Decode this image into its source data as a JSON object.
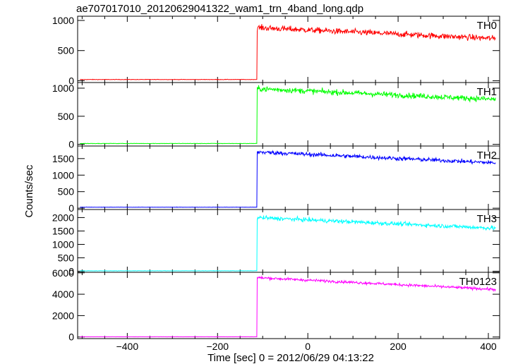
{
  "title": "ae707017010_20120629041322_wam1_trn_4band_long.qdp",
  "xlabel": "Time [sec] 0 = 2012/06/29 04:13:22",
  "ylabel": "Counts/sec",
  "chart_data": {
    "type": "line",
    "title": "ae707017010_20120629041322_wam1_trn_4band_long.qdp",
    "xlabel": "Time [sec] 0 = 2012/06/29 04:13:22",
    "ylabel": "Counts/sec",
    "xlim": [
      -510,
      425
    ],
    "x_ticks": [
      -400,
      -200,
      0,
      200,
      400
    ],
    "grid": false,
    "legend": "none",
    "onset_time": -112,
    "panels": [
      {
        "label": "TH0",
        "color": "#ff0000",
        "ylim": [
          -30,
          1070
        ],
        "y_ticks": [
          0,
          500,
          1000
        ],
        "pre_level": 20,
        "post_start_level": 880,
        "post_end_level": 700,
        "noise": 35
      },
      {
        "label": "TH1",
        "color": "#00ff00",
        "ylim": [
          -30,
          1100
        ],
        "y_ticks": [
          0,
          500,
          1000
        ],
        "pre_level": 15,
        "post_start_level": 990,
        "post_end_level": 800,
        "noise": 35
      },
      {
        "label": "TH2",
        "color": "#0000ff",
        "ylim": [
          -40,
          1880
        ],
        "y_ticks": [
          0,
          500,
          1000,
          1500
        ],
        "pre_level": 30,
        "post_start_level": 1700,
        "post_end_level": 1370,
        "noise": 45
      },
      {
        "label": "TH3",
        "color": "#00ffff",
        "ylim": [
          -40,
          2300
        ],
        "y_ticks": [
          0,
          500,
          1000,
          1500,
          2000
        ],
        "pre_level": 15,
        "post_start_level": 2000,
        "post_end_level": 1600,
        "noise": 55
      },
      {
        "label": "TH0123",
        "color": "#ff00ff",
        "ylim": [
          -150,
          6050
        ],
        "y_ticks": [
          0,
          2000,
          4000,
          6000
        ],
        "pre_level": 20,
        "post_start_level": 5550,
        "post_end_level": 4450,
        "noise": 90
      }
    ]
  }
}
